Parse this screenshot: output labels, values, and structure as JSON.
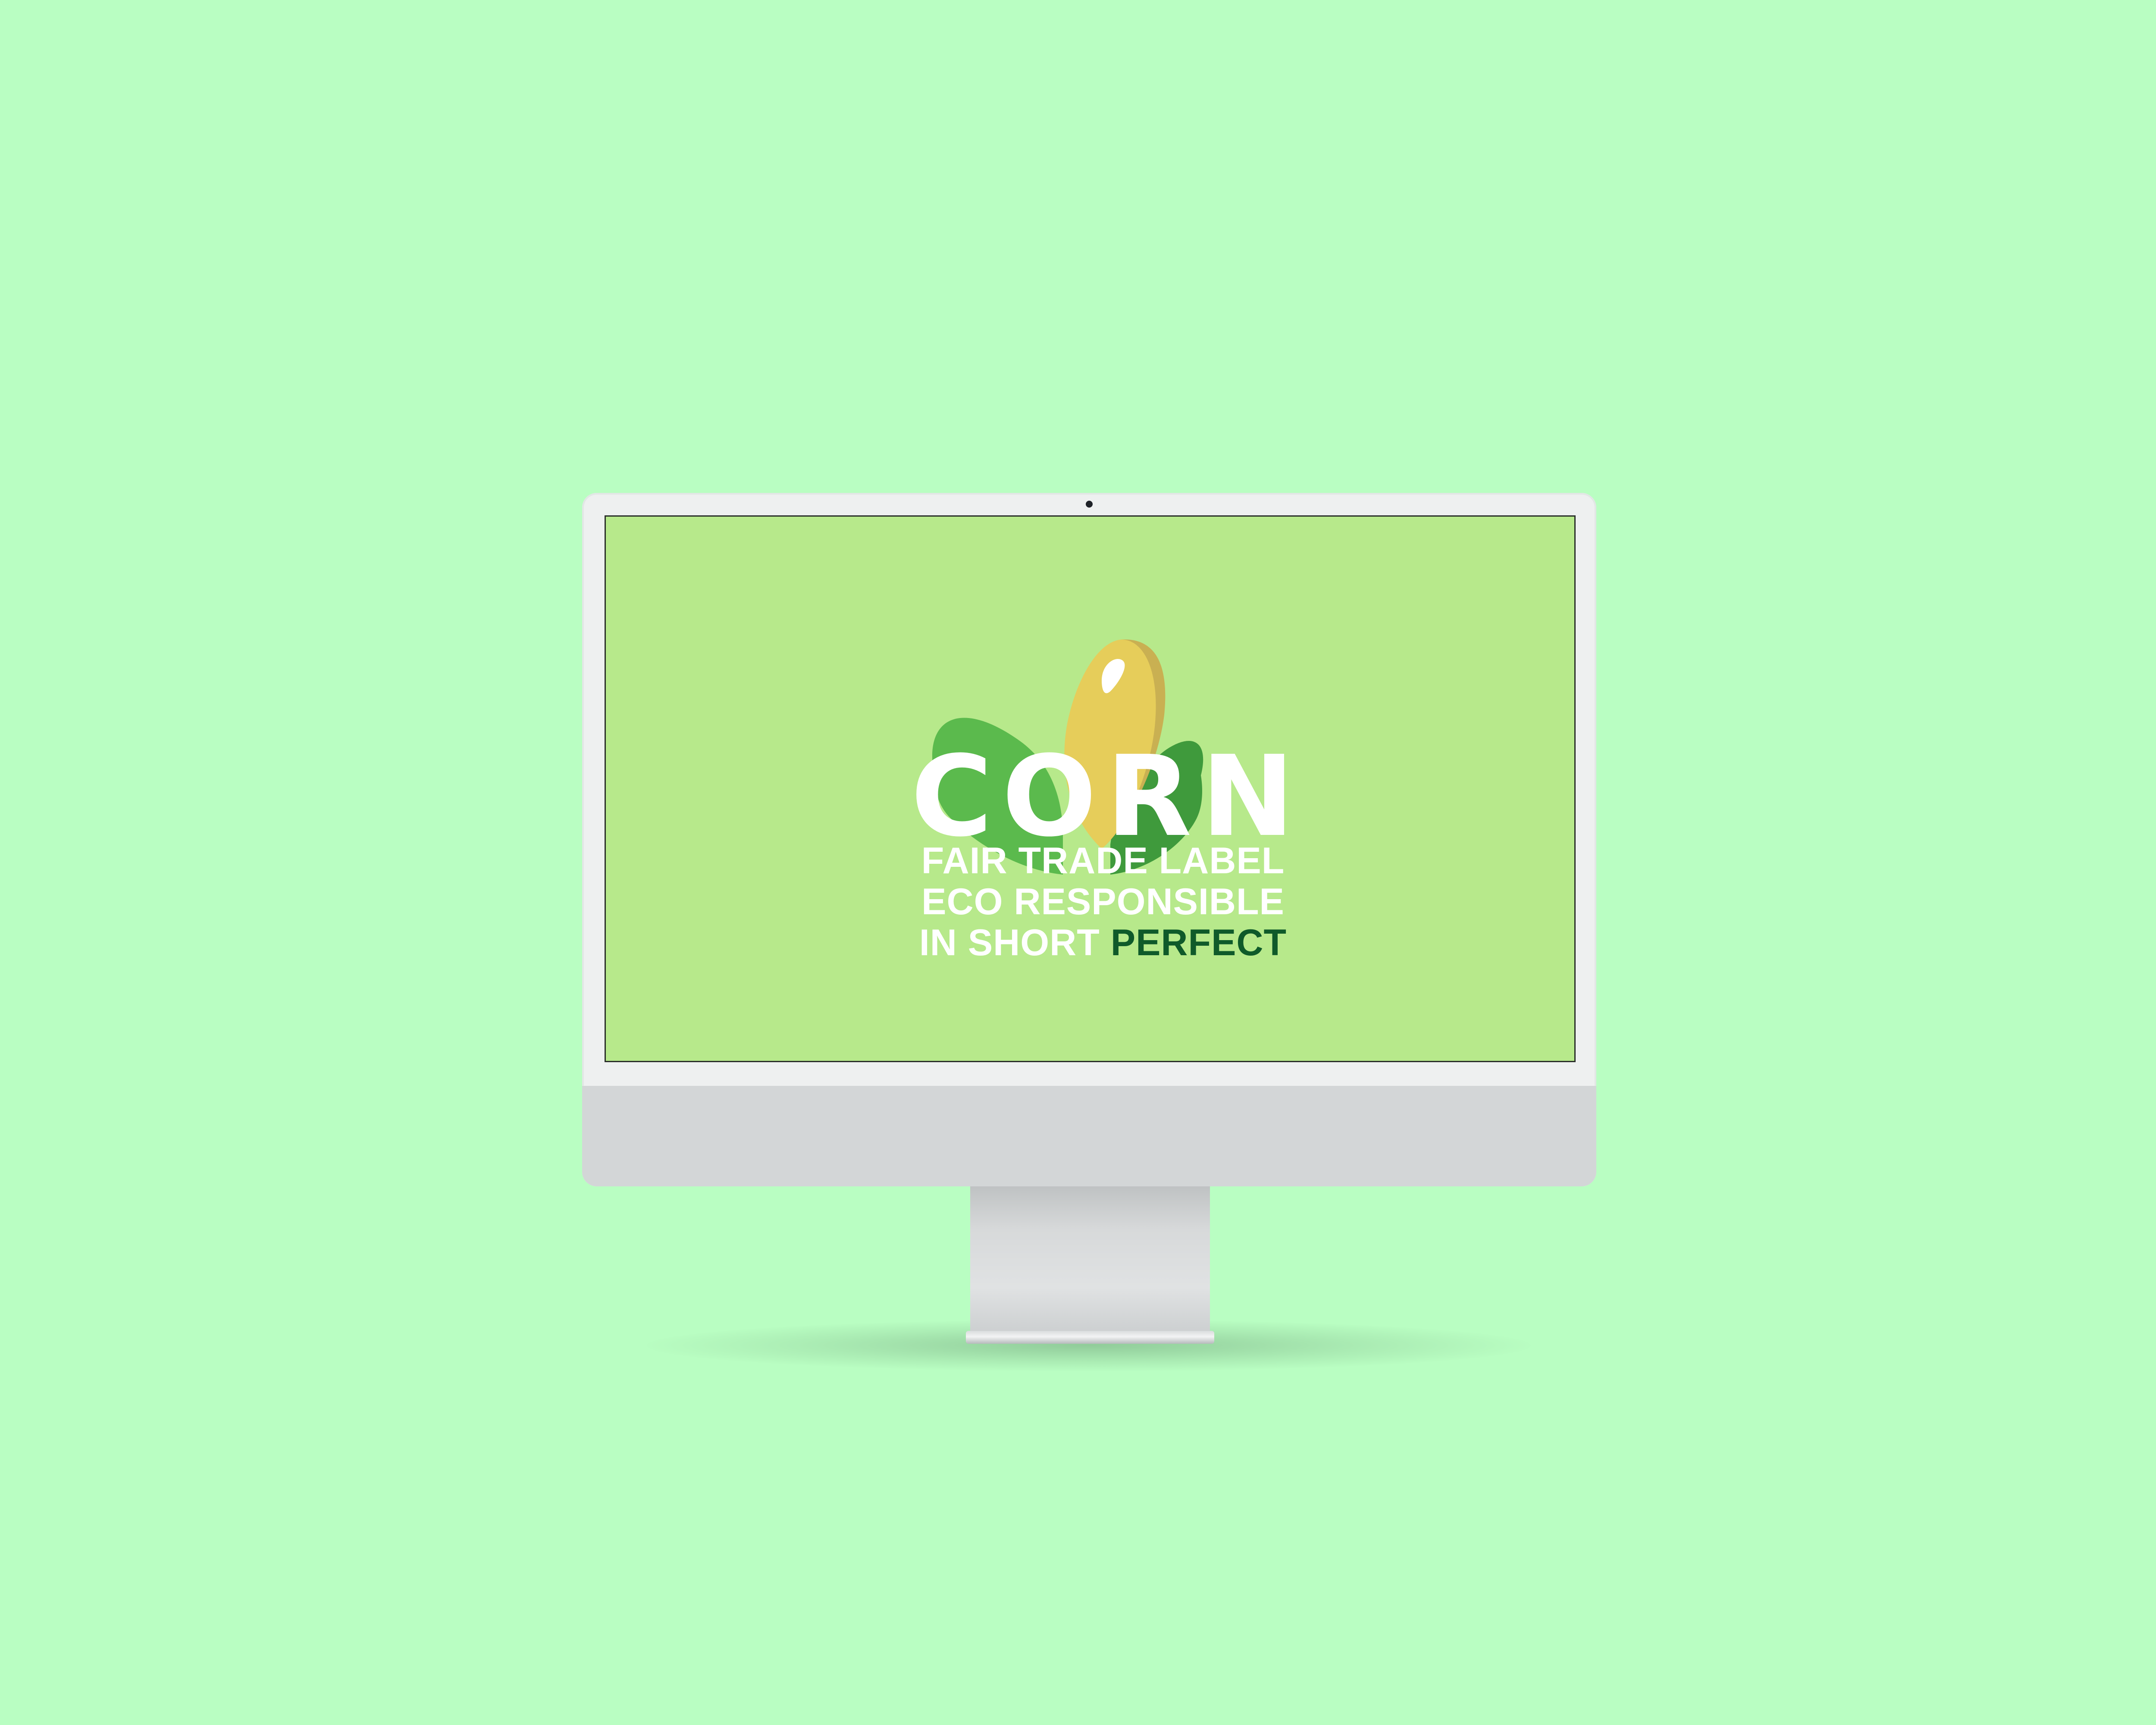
{
  "screen": {
    "title": "CORN",
    "tagline": {
      "line1": "FAIR TRADE LABEL",
      "line2": "ECO RESPONSIBLE",
      "line3_prefix": "IN SHORT ",
      "line3_accent": "PERFECT"
    },
    "illustration": "corn-icon"
  },
  "colors": {
    "background": "#b9fec2",
    "screen": "#b7e98b",
    "kernel": "#e6cd5a",
    "kernel_shade": "#c9b052",
    "leaf_light": "#5bba4d",
    "leaf_dark": "#3f9a3c",
    "accent_text": "#0f5a2a",
    "bezel": "#eef0f0",
    "chin": "#d3d6d7"
  }
}
